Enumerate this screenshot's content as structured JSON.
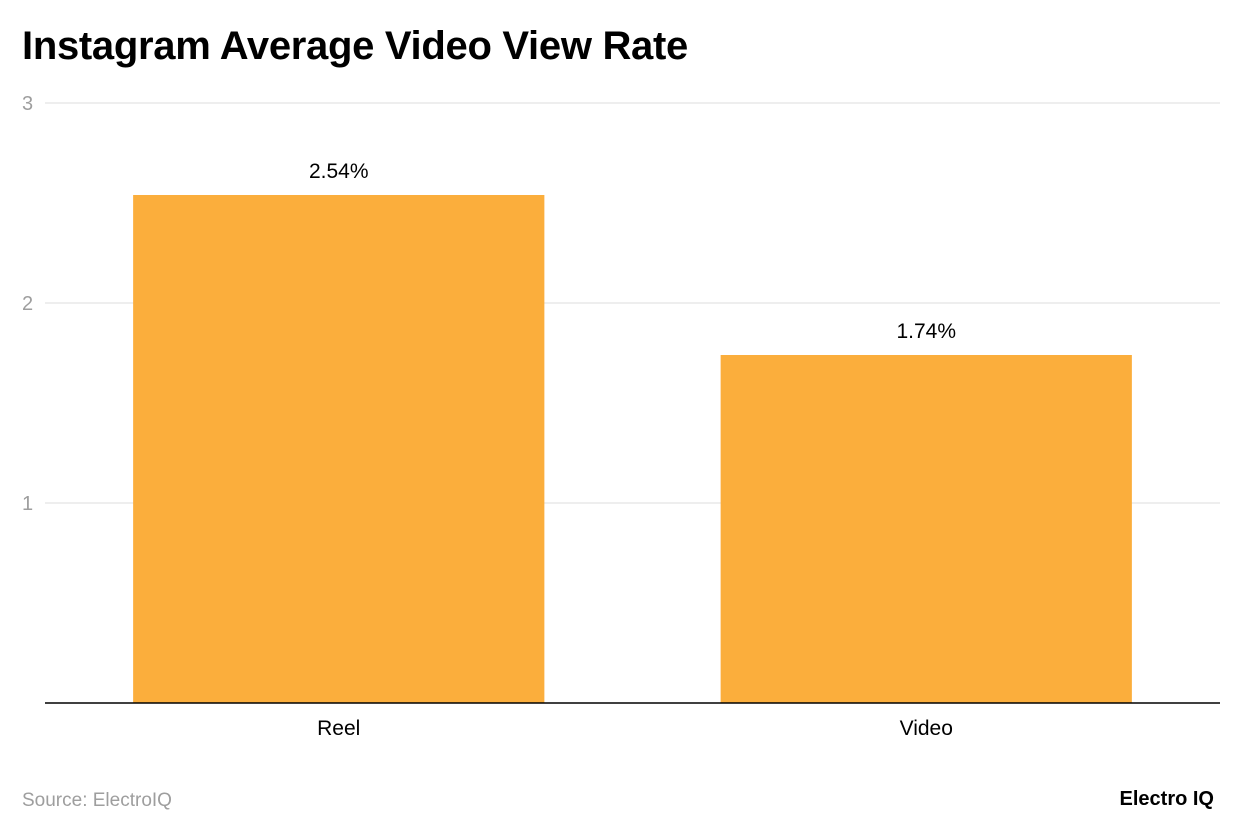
{
  "title": "Instagram Average Video View Rate",
  "source": "Source: ElectroIQ",
  "brand": "Electro IQ",
  "colors": {
    "bar": "#fbae3c",
    "grid": "#dddddd",
    "axis": "#000000",
    "tick_label": "#9e9e9e"
  },
  "chart_data": {
    "type": "bar",
    "categories": [
      "Reel",
      "Video"
    ],
    "values": [
      2.54,
      1.74
    ],
    "data_labels": [
      "2.54%",
      "1.74%"
    ],
    "y_ticks": [
      1,
      2,
      3
    ],
    "ylim": [
      0,
      3
    ],
    "grid": true,
    "title": "Instagram Average Video View Rate",
    "xlabel": "",
    "ylabel": ""
  }
}
